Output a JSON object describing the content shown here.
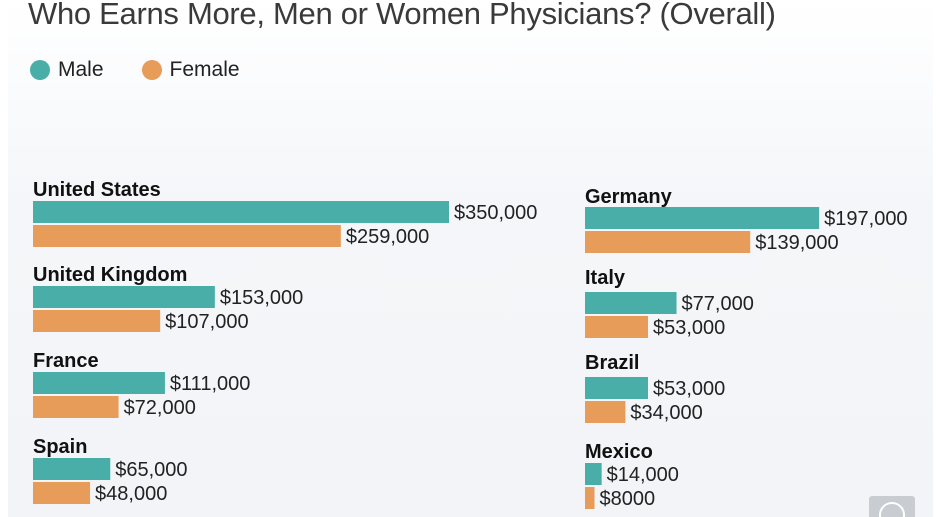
{
  "chart_data": {
    "type": "bar",
    "orientation": "horizontal",
    "title": "Who Earns More, Men or Women Physicians? (Overall)",
    "legend": [
      {
        "name": "Male",
        "color": "#4aaea8"
      },
      {
        "name": "Female",
        "color": "#e89c5a"
      }
    ],
    "groups": [
      {
        "country": "United States",
        "male": 350000,
        "male_label": "$350,000",
        "female": 259000,
        "female_label": "$259,000"
      },
      {
        "country": "United Kingdom",
        "male": 153000,
        "male_label": "$153,000",
        "female": 107000,
        "female_label": "$107,000"
      },
      {
        "country": "France",
        "male": 111000,
        "male_label": "$111,000",
        "female": 72000,
        "female_label": "$72,000"
      },
      {
        "country": "Spain",
        "male": 65000,
        "male_label": "$65,000",
        "female": 48000,
        "female_label": "$48,000"
      },
      {
        "country": "Germany",
        "male": 197000,
        "male_label": "$197,000",
        "female": 139000,
        "female_label": "$139,000"
      },
      {
        "country": "Italy",
        "male": 77000,
        "male_label": "$77,000",
        "female": 53000,
        "female_label": "$53,000"
      },
      {
        "country": "Brazil",
        "male": 53000,
        "male_label": "$53,000",
        "female": 34000,
        "female_label": "$34,000"
      },
      {
        "country": "Mexico",
        "male": 14000,
        "male_label": "$14,000",
        "female": 8000,
        "female_label": "$8000"
      }
    ],
    "xlim": [
      0,
      350000
    ],
    "xlabel": "",
    "ylabel": "",
    "grid": false
  }
}
